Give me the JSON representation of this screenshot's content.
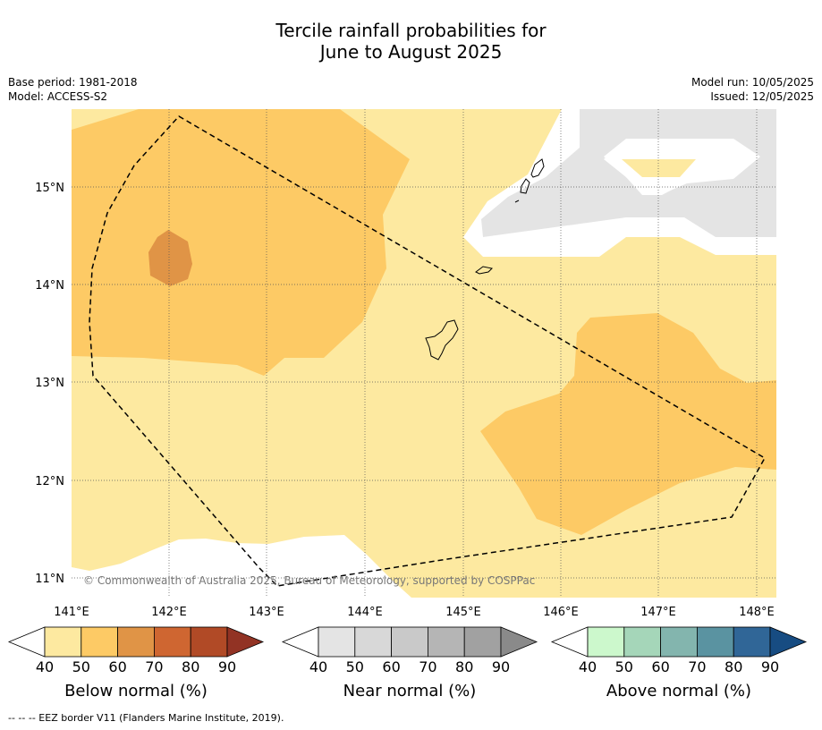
{
  "title_line1": "Tercile rainfall probabilities for",
  "title_line2": "June to August 2025",
  "meta_left": {
    "base_period": "Base period: 1981-2018",
    "model": "Model: ACCESS-S2"
  },
  "meta_right": {
    "model_run": "Model run: 10/05/2025",
    "issued": "Issued: 12/05/2025"
  },
  "map": {
    "lat_labels": [
      "15°N",
      "14°N",
      "13°N",
      "12°N",
      "11°N"
    ],
    "lon_labels": [
      "141°E",
      "142°E",
      "143°E",
      "144°E",
      "145°E",
      "146°E",
      "147°E",
      "148°E"
    ],
    "copyright": "© Commonwealth of Australia 2025, Bureau of Meteorology, supported by COSPPac",
    "colors": {
      "below_50": "#fde9a0",
      "below_60": "#fdca65",
      "below_70": "#e09446",
      "near_40": "#e4e4e4"
    }
  },
  "colorbars": [
    {
      "label": "Below normal (%)",
      "ticks": [
        "40",
        "50",
        "60",
        "70",
        "80",
        "90"
      ],
      "colors": [
        "#ffffff",
        "#fde9a0",
        "#fdca65",
        "#e09446",
        "#cf6631",
        "#b14a26",
        "#923324"
      ]
    },
    {
      "label": "Near normal (%)",
      "ticks": [
        "40",
        "50",
        "60",
        "70",
        "80",
        "90"
      ],
      "colors": [
        "#ffffff",
        "#e4e4e4",
        "#d8d8d8",
        "#c9c9c9",
        "#b5b5b5",
        "#a1a1a1",
        "#8a8a8a"
      ]
    },
    {
      "label": "Above normal (%)",
      "ticks": [
        "40",
        "50",
        "60",
        "70",
        "80",
        "90"
      ],
      "colors": [
        "#ffffff",
        "#ccf8cc",
        "#a5d6b9",
        "#83b5ae",
        "#5a93a1",
        "#306697",
        "#174c82"
      ]
    }
  ],
  "footer": "--  --  -- EEZ border V11 (Flanders Marine Institute, 2019)."
}
